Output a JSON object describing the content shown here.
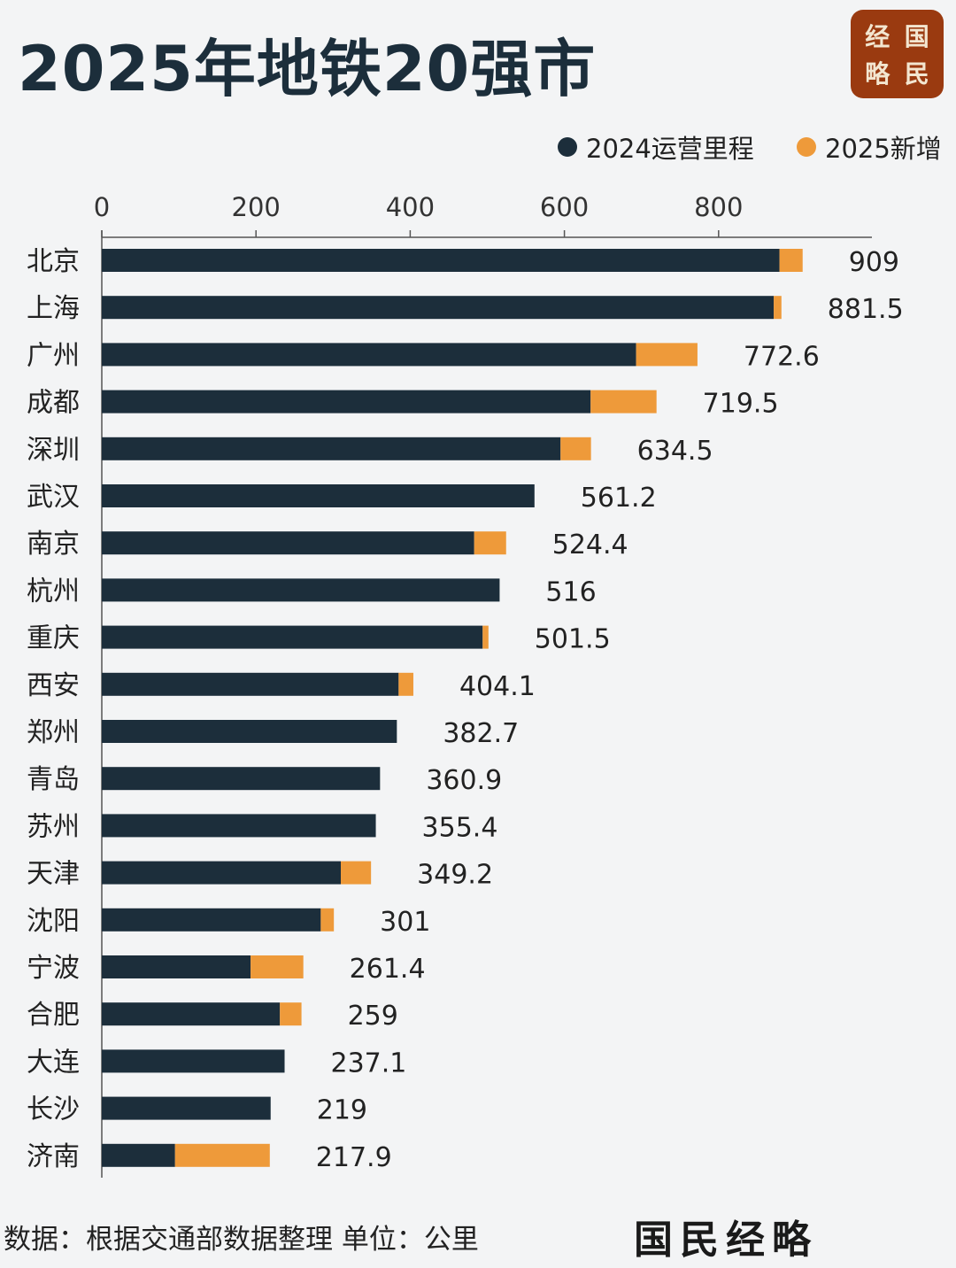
{
  "title": "2025年地铁20强市",
  "logo": {
    "chars": [
      "国",
      "经",
      "民",
      "略"
    ],
    "text": "国民经略"
  },
  "source_note": "数据：根据交通部数据整理 单位：公里",
  "brand": "国民经略",
  "colors": {
    "base": "#1c2e3b",
    "added": "#ee9a3a",
    "logo_bg": "#9a3a10"
  },
  "chart_data": {
    "type": "bar",
    "orientation": "horizontal",
    "stacked": true,
    "title": "2025年地铁20强市",
    "legend_position": "top-right",
    "xlim": [
      0,
      1000
    ],
    "x_ticks": [
      0,
      200,
      400,
      600,
      800
    ],
    "grid": false,
    "categories": [
      "北京",
      "上海",
      "广州",
      "成都",
      "深圳",
      "武汉",
      "南京",
      "杭州",
      "重庆",
      "西安",
      "郑州",
      "青岛",
      "苏州",
      "天津",
      "沈阳",
      "宁波",
      "合肥",
      "大连",
      "长沙",
      "济南"
    ],
    "series": [
      {
        "name": "2024运营里程",
        "values": [
          879,
          871.5,
          693,
          634,
          595,
          561.2,
          483,
          516,
          494,
          385,
          382.7,
          360.9,
          355.4,
          310,
          284,
          193,
          231,
          237.1,
          219,
          95
        ]
      },
      {
        "name": "2025新增",
        "values": [
          30,
          10,
          79.6,
          85.5,
          39.5,
          0,
          41.4,
          0,
          7.5,
          19.1,
          0,
          0,
          0,
          39.2,
          17,
          68.4,
          28,
          0,
          0,
          122.9
        ]
      }
    ],
    "totals": [
      "909",
      "881.5",
      "772.6",
      "719.5",
      "634.5",
      "561.2",
      "524.4",
      "516",
      "501.5",
      "404.1",
      "382.7",
      "360.9",
      "355.4",
      "349.2",
      "301",
      "261.4",
      "259",
      "237.1",
      "219",
      "217.9"
    ]
  }
}
